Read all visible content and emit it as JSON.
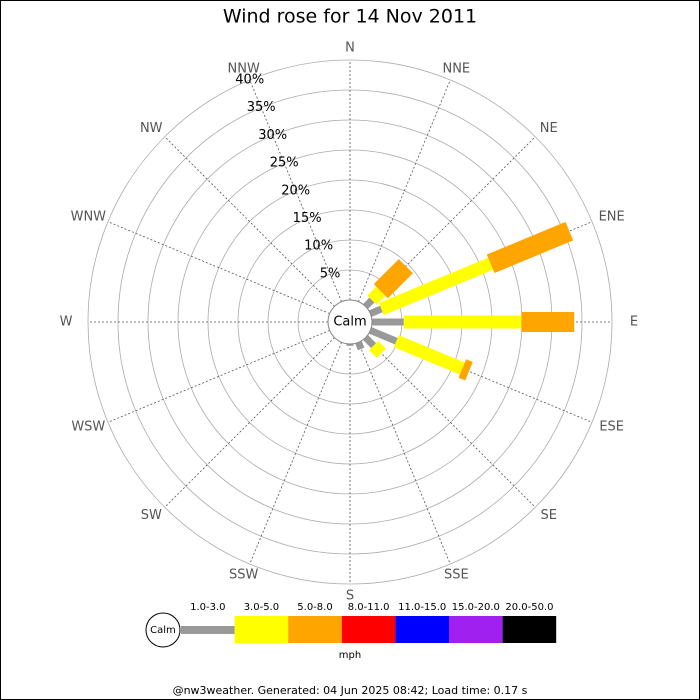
{
  "chart_data": {
    "type": "wind_rose",
    "title": "Wind rose for 14 Nov 2011",
    "categories": [
      "N",
      "NNE",
      "NE",
      "ENE",
      "E",
      "ESE",
      "SE",
      "SSE",
      "S",
      "SSW",
      "SW",
      "WSW",
      "W",
      "WNW",
      "NW",
      "NNW"
    ],
    "series": [
      {
        "name": "1.0-3.0",
        "color": "#999999",
        "values": [
          0,
          0,
          1.5,
          2,
          5.3,
          4.7,
          1.9,
          1.2,
          0.3,
          0,
          0,
          0,
          0,
          0,
          0,
          0
        ]
      },
      {
        "name": "3.0-5.0",
        "color": "#ffff00",
        "values": [
          0,
          0,
          2.1,
          19.7,
          19.6,
          11.9,
          1.8,
          0,
          0,
          0,
          0,
          0,
          0,
          0,
          0,
          0
        ]
      },
      {
        "name": "5.0-8.0",
        "color": "#ffa500",
        "values": [
          0,
          0,
          5.9,
          14.2,
          8.8,
          1.2,
          0,
          0,
          0,
          0,
          0,
          0,
          0,
          0,
          0,
          0
        ]
      },
      {
        "name": "8.0-11.0",
        "color": "#ff0000",
        "values": [
          0,
          0,
          0,
          0,
          0,
          0,
          0,
          0,
          0,
          0,
          0,
          0,
          0,
          0,
          0,
          0
        ]
      },
      {
        "name": "11.0-15.0",
        "color": "#0000ff",
        "values": [
          0,
          0,
          0,
          0,
          0,
          0,
          0,
          0,
          0,
          0,
          0,
          0,
          0,
          0,
          0,
          0
        ]
      },
      {
        "name": "15.0-20.0",
        "color": "#a020f0",
        "values": [
          0,
          0,
          0,
          0,
          0,
          0,
          0,
          0,
          0,
          0,
          0,
          0,
          0,
          0,
          0,
          0
        ]
      },
      {
        "name": "20.0-50.0",
        "color": "#000000",
        "values": [
          0,
          0,
          0,
          0,
          0,
          0,
          0,
          0,
          0,
          0,
          0,
          0,
          0,
          0,
          0,
          0
        ]
      }
    ],
    "calm_label": "Calm",
    "legend_unit": "mph",
    "ylim": [
      0,
      40
    ],
    "yticks": [
      {
        "value": 5,
        "label": "5%"
      },
      {
        "value": 10,
        "label": "10%"
      },
      {
        "value": 15,
        "label": "15%"
      },
      {
        "value": 20,
        "label": "20%"
      },
      {
        "value": 25,
        "label": "25%"
      },
      {
        "value": 30,
        "label": "30%"
      },
      {
        "value": 35,
        "label": "35%"
      },
      {
        "value": 40,
        "label": "40%"
      }
    ],
    "footer": "@nw3weather. Generated: 04 Jun 2025 08:42; Load time: 0.17 s"
  }
}
